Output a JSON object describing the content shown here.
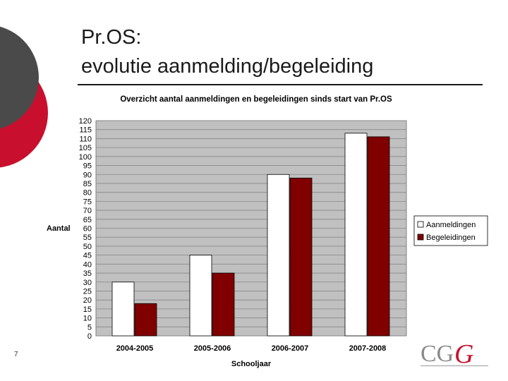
{
  "slide": {
    "title_line1": "Pr.OS:",
    "title_line2": "evolutie aanmelding/begeleiding",
    "slide_number": "7",
    "logo_text": "CGG",
    "colors": {
      "accent_red": "#c8102e",
      "dark_gray": "#4a4a4a"
    }
  },
  "chart_data": {
    "type": "bar",
    "title": "Overzicht aantal aanmeldingen en begeleidingen sinds start van Pr.OS",
    "xlabel": "Schooljaar",
    "ylabel": "Aantal",
    "categories": [
      "2004-2005",
      "2005-2006",
      "2006-2007",
      "2007-2008"
    ],
    "series": [
      {
        "name": "Aanmeldingen",
        "values": [
          30,
          45,
          90,
          113
        ],
        "color": "#ffffff"
      },
      {
        "name": "Begeleidingen",
        "values": [
          18,
          35,
          88,
          111
        ],
        "color": "#800000"
      }
    ],
    "ylim": [
      0,
      120
    ],
    "ytick_step": 5,
    "grid": true,
    "legend_position": "right",
    "plot_background": "#c0c0c0"
  }
}
